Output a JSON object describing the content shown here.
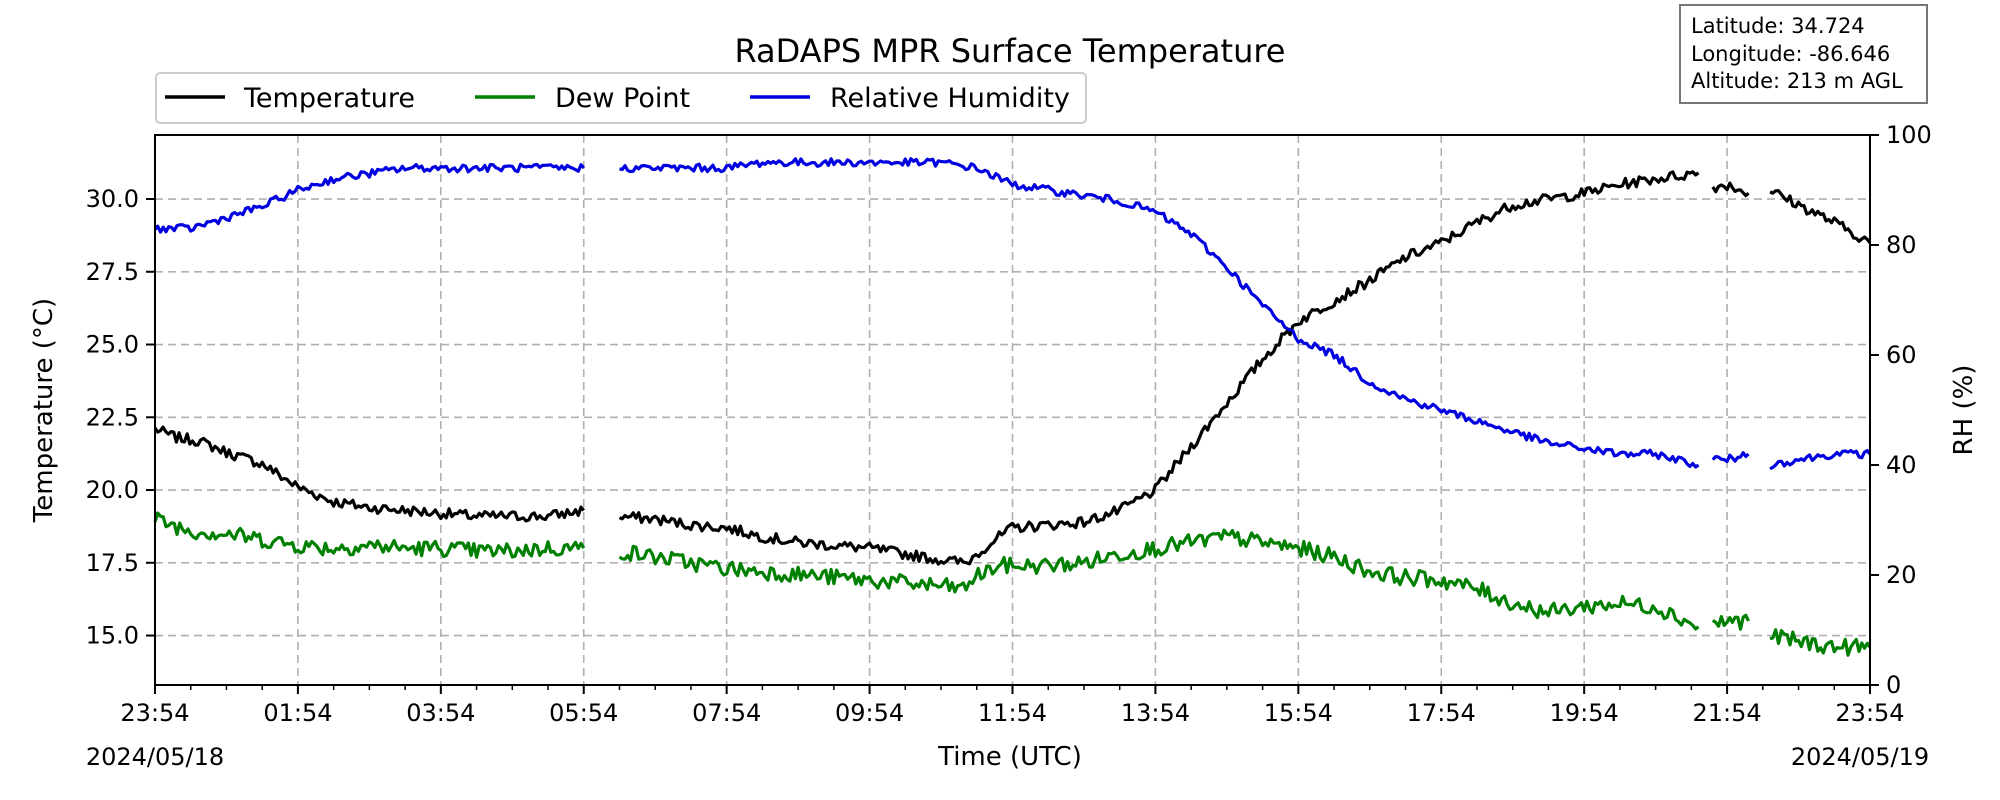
{
  "chart_data": {
    "type": "line",
    "title": "RaDAPS MPR Surface Temperature",
    "xlabel": "Time (UTC)",
    "ylabel_left": "Temperature ($^\\circ$C)",
    "ylabel_left_display": "Temperature (°C)",
    "ylabel_right": "RH (%)",
    "x_tick_labels": [
      "23:54",
      "01:54",
      "03:54",
      "05:54",
      "07:54",
      "09:54",
      "11:54",
      "13:54",
      "15:54",
      "17:54",
      "19:54",
      "21:54",
      "23:54"
    ],
    "x_tick_hours": [
      0,
      2,
      4,
      6,
      8,
      10,
      12,
      14,
      16,
      18,
      20,
      22,
      24
    ],
    "x_minor_step_hours": 0.5,
    "start_date": "2024/05/18",
    "end_date": "2024/05/19",
    "ylim_left": [
      13.3,
      32.2
    ],
    "yticks_left": [
      15.0,
      17.5,
      20.0,
      22.5,
      25.0,
      27.5,
      30.0
    ],
    "ylim_right": [
      0,
      100
    ],
    "yticks_right": [
      0,
      20,
      40,
      60,
      80,
      100
    ],
    "grid": true,
    "legend_position": "top-left",
    "info_box": {
      "latitude": "Latitude: 34.724",
      "longitude": "Longitude: -86.646",
      "altitude": "Altitude: 213 m AGL"
    },
    "series": [
      {
        "name": "Temperature",
        "axis": "left",
        "color": "#000000",
        "noise": 0.18,
        "points": [
          [
            0,
            22.1
          ],
          [
            0.3,
            21.8
          ],
          [
            0.6,
            21.7
          ],
          [
            1,
            21.3
          ],
          [
            1.5,
            20.9
          ],
          [
            2,
            20.1
          ],
          [
            2.5,
            19.6
          ],
          [
            3,
            19.4
          ],
          [
            3.5,
            19.3
          ],
          [
            4,
            19.2
          ],
          [
            4.5,
            19.1
          ],
          [
            5,
            19.1
          ],
          [
            5.5,
            19.1
          ],
          [
            6,
            19.3
          ],
          null,
          [
            6.5,
            19.1
          ],
          [
            7,
            19.0
          ],
          [
            7.5,
            18.8
          ],
          [
            8,
            18.7
          ],
          [
            8.5,
            18.4
          ],
          [
            9,
            18.2
          ],
          [
            9.5,
            18.1
          ],
          [
            10,
            18.0
          ],
          [
            10.5,
            17.8
          ],
          [
            11,
            17.6
          ],
          [
            11.35,
            17.5
          ],
          [
            11.4,
            17.6
          ],
          [
            11.7,
            18.2
          ],
          [
            12,
            18.7
          ],
          [
            12.5,
            18.8
          ],
          [
            13,
            18.9
          ],
          [
            13.5,
            19.3
          ],
          [
            14,
            20.0
          ],
          [
            14.5,
            21.5
          ],
          [
            15,
            23.0
          ],
          [
            15.5,
            24.5
          ],
          [
            16,
            25.8
          ],
          [
            16.5,
            26.5
          ],
          [
            17,
            27.2
          ],
          [
            17.5,
            28.0
          ],
          [
            18,
            28.5
          ],
          [
            18.5,
            29.2
          ],
          [
            19,
            29.8
          ],
          [
            19.5,
            30.0
          ],
          [
            20,
            30.2
          ],
          [
            20.5,
            30.5
          ],
          [
            21,
            30.7
          ],
          [
            21.6,
            30.9
          ],
          null,
          [
            21.8,
            30.4
          ],
          [
            22.0,
            30.5
          ],
          [
            22.3,
            30.2
          ],
          null,
          [
            22.6,
            30.3
          ],
          [
            23,
            29.8
          ],
          [
            23.5,
            29.2
          ],
          [
            24,
            28.5
          ]
        ]
      },
      {
        "name": "Dew Point",
        "axis": "left",
        "color": "#008000",
        "noise": 0.28,
        "points": [
          [
            0,
            19.0
          ],
          [
            0.5,
            18.6
          ],
          [
            1,
            18.5
          ],
          [
            1.5,
            18.3
          ],
          [
            2,
            18.1
          ],
          [
            2.5,
            18.0
          ],
          [
            3,
            18.1
          ],
          [
            3.5,
            18.0
          ],
          [
            4,
            18.0
          ],
          [
            4.5,
            17.9
          ],
          [
            5,
            17.9
          ],
          [
            5.5,
            18.0
          ],
          [
            6,
            18.0
          ],
          null,
          [
            6.5,
            17.9
          ],
          [
            7,
            17.7
          ],
          [
            7.5,
            17.5
          ],
          [
            8,
            17.3
          ],
          [
            8.5,
            17.2
          ],
          [
            9,
            17.1
          ],
          [
            9.5,
            17.0
          ],
          [
            10,
            16.9
          ],
          [
            10.5,
            16.8
          ],
          [
            11,
            16.7
          ],
          [
            11.35,
            16.6
          ],
          [
            11.4,
            16.9
          ],
          [
            11.8,
            17.4
          ],
          [
            12.5,
            17.4
          ],
          [
            13,
            17.5
          ],
          [
            13.5,
            17.8
          ],
          [
            14,
            18.0
          ],
          [
            14.5,
            18.2
          ],
          [
            15,
            18.4
          ],
          [
            15.5,
            18.2
          ],
          [
            16,
            18.0
          ],
          [
            16.5,
            17.7
          ],
          [
            17,
            17.2
          ],
          [
            17.5,
            17.0
          ],
          [
            18,
            16.9
          ],
          [
            18.5,
            16.6
          ],
          [
            19,
            16.1
          ],
          [
            19.5,
            15.8
          ],
          [
            20,
            16.0
          ],
          [
            20.5,
            16.1
          ],
          [
            21,
            16.0
          ],
          [
            21.6,
            15.3
          ],
          null,
          [
            21.8,
            15.4
          ],
          [
            22.0,
            15.5
          ],
          [
            22.3,
            15.5
          ],
          null,
          [
            22.6,
            15.0
          ],
          [
            23,
            14.8
          ],
          [
            23.5,
            14.6
          ],
          [
            24,
            14.6
          ]
        ]
      },
      {
        "name": "Relative Humidity",
        "axis": "right",
        "color": "#0000e0",
        "noise": 0.7,
        "points": [
          [
            0,
            83
          ],
          [
            0.5,
            83
          ],
          [
            1,
            85
          ],
          [
            1.5,
            87
          ],
          [
            2,
            90
          ],
          [
            2.5,
            92
          ],
          [
            3,
            93
          ],
          [
            3.5,
            94
          ],
          [
            4,
            94
          ],
          [
            4.5,
            94
          ],
          [
            5,
            94
          ],
          [
            5.5,
            94
          ],
          [
            6,
            94
          ],
          null,
          [
            6.5,
            94
          ],
          [
            7,
            94
          ],
          [
            7.5,
            94
          ],
          [
            8,
            94
          ],
          [
            8.5,
            95
          ],
          [
            9,
            95
          ],
          [
            9.5,
            95
          ],
          [
            10,
            95
          ],
          [
            10.5,
            95
          ],
          [
            11,
            95
          ],
          [
            11.5,
            94
          ],
          [
            12,
            91
          ],
          [
            12.5,
            90
          ],
          [
            13,
            89
          ],
          [
            13.5,
            88
          ],
          [
            14,
            86
          ],
          [
            14.5,
            82
          ],
          [
            15,
            76
          ],
          [
            15.5,
            69
          ],
          [
            16,
            63
          ],
          [
            16.5,
            60
          ],
          [
            17,
            55
          ],
          [
            17.5,
            52
          ],
          [
            18,
            50
          ],
          [
            18.5,
            48
          ],
          [
            19,
            46
          ],
          [
            19.5,
            44
          ],
          [
            20,
            43
          ],
          [
            20.5,
            42
          ],
          [
            21,
            42
          ],
          [
            21.6,
            40
          ],
          null,
          [
            21.8,
            41
          ],
          [
            22.0,
            41
          ],
          [
            22.3,
            42
          ],
          null,
          [
            22.6,
            40
          ],
          [
            23,
            41
          ],
          [
            23.5,
            42
          ],
          [
            24,
            42
          ]
        ]
      }
    ]
  }
}
